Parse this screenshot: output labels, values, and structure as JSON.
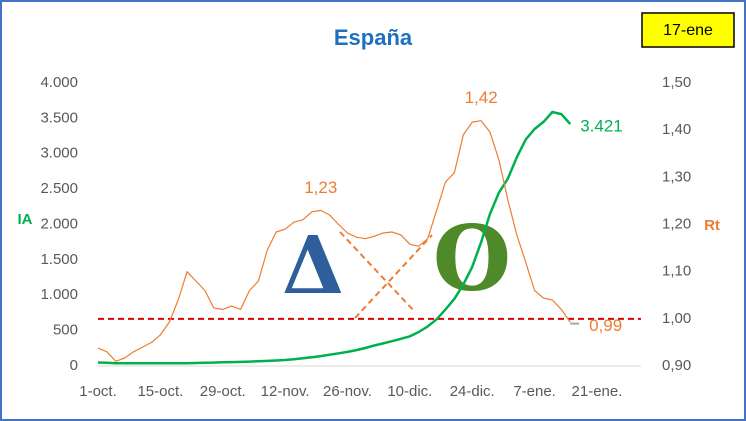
{
  "chart_data": {
    "type": "line",
    "title": "España",
    "badge": "17-ene",
    "y_label": "IA",
    "y2_label": "Rt",
    "categories": [
      "1-oct.",
      null,
      null,
      null,
      null,
      null,
      null,
      "15-oct.",
      null,
      null,
      null,
      null,
      null,
      null,
      "29-oct.",
      null,
      null,
      null,
      null,
      null,
      null,
      "12-nov.",
      null,
      null,
      null,
      null,
      null,
      null,
      "26-nov.",
      null,
      null,
      null,
      null,
      null,
      null,
      "10-dic.",
      null,
      null,
      null,
      null,
      null,
      null,
      "24-dic.",
      null,
      null,
      null,
      null,
      null,
      null,
      "7-ene.",
      null,
      null,
      null,
      null,
      null,
      null,
      "21-ene."
    ],
    "ylim": [
      0,
      4000
    ],
    "yticks": [
      {
        "value": 0,
        "label": "0"
      },
      {
        "value": 500,
        "label": "500"
      },
      {
        "value": 1000,
        "label": "1.000"
      },
      {
        "value": 1500,
        "label": "1.500"
      },
      {
        "value": 2000,
        "label": "2.000"
      },
      {
        "value": 2500,
        "label": "2.500"
      },
      {
        "value": 3000,
        "label": "3.000"
      },
      {
        "value": 3500,
        "label": "3.500"
      },
      {
        "value": 4000,
        "label": "4.000"
      }
    ],
    "y2lim": [
      0.9,
      1.5
    ],
    "y2ticks": [
      {
        "value": 0.9,
        "label": "0,90"
      },
      {
        "value": 1.0,
        "label": "1,00"
      },
      {
        "value": 1.1,
        "label": "1,10"
      },
      {
        "value": 1.2,
        "label": "1,20"
      },
      {
        "value": 1.3,
        "label": "1,30"
      },
      {
        "value": 1.4,
        "label": "1,40"
      },
      {
        "value": 1.5,
        "label": "1,50"
      }
    ],
    "series": [
      {
        "color": "#00b050",
        "axis": "y",
        "values": [
          50,
          45,
          40,
          38,
          38,
          38,
          38,
          38,
          38,
          40,
          40,
          42,
          45,
          48,
          52,
          55,
          58,
          62,
          68,
          72,
          78,
          85,
          95,
          110,
          125,
          140,
          160,
          180,
          200,
          225,
          255,
          290,
          320,
          350,
          385,
          420,
          480,
          560,
          660,
          800,
          950,
          1150,
          1400,
          1750,
          2150,
          2450,
          2650,
          2950,
          3200,
          3350,
          3450,
          3590,
          3560,
          3421,
          null,
          null,
          null
        ],
        "value_labels": [
          null,
          null,
          null,
          null,
          null,
          null,
          null,
          null,
          null,
          null,
          null,
          null,
          null,
          null,
          null,
          null,
          null,
          null,
          null,
          null,
          null,
          null,
          null,
          null,
          null,
          null,
          null,
          null,
          null,
          null,
          null,
          null,
          null,
          null,
          null,
          null,
          null,
          null,
          null,
          null,
          null,
          null,
          null,
          null,
          null,
          null,
          null,
          null,
          null,
          null,
          null,
          null,
          null,
          "3.421",
          null,
          null,
          null
        ]
      },
      {
        "color": "#ed7d31",
        "axis": "y2",
        "values": [
          0.938,
          0.93,
          0.91,
          0.917,
          0.93,
          0.94,
          0.95,
          0.966,
          0.993,
          1.04,
          1.1,
          1.08,
          1.06,
          1.023,
          1.02,
          1.027,
          1.02,
          1.06,
          1.08,
          1.146,
          1.184,
          1.19,
          1.205,
          1.21,
          1.227,
          1.23,
          1.22,
          1.2,
          1.182,
          1.173,
          1.17,
          1.175,
          1.182,
          1.184,
          1.178,
          1.158,
          1.154,
          1.17,
          1.23,
          1.29,
          1.31,
          1.39,
          1.417,
          1.42,
          1.396,
          1.337,
          1.252,
          1.178,
          1.12,
          1.06,
          1.044,
          1.04,
          1.02,
          0.993,
          null,
          null,
          null
        ],
        "value_labels": [
          null,
          null,
          null,
          null,
          null,
          null,
          null,
          null,
          null,
          null,
          null,
          null,
          null,
          null,
          null,
          null,
          null,
          null,
          null,
          null,
          null,
          null,
          null,
          null,
          null,
          "1,23",
          null,
          null,
          null,
          null,
          null,
          null,
          null,
          null,
          null,
          null,
          null,
          null,
          null,
          null,
          null,
          null,
          null,
          "1,42",
          null,
          null,
          null,
          null,
          null,
          null,
          null,
          null,
          null,
          null,
          null,
          null,
          null
        ]
      },
      {
        "color": "#a6a6a6",
        "axis": "y2",
        "label_color": "#ed7d31",
        "values": [
          null,
          null,
          null,
          null,
          null,
          null,
          null,
          null,
          null,
          null,
          null,
          null,
          null,
          null,
          null,
          null,
          null,
          null,
          null,
          null,
          null,
          null,
          null,
          null,
          null,
          null,
          null,
          null,
          null,
          null,
          null,
          null,
          null,
          null,
          null,
          null,
          null,
          null,
          null,
          null,
          null,
          null,
          null,
          null,
          null,
          null,
          null,
          null,
          null,
          null,
          null,
          null,
          null,
          0.99,
          0.99,
          null,
          null
        ],
        "value_labels": [
          null,
          null,
          null,
          null,
          null,
          null,
          null,
          null,
          null,
          null,
          null,
          null,
          null,
          null,
          null,
          null,
          null,
          null,
          null,
          null,
          null,
          null,
          null,
          null,
          null,
          null,
          null,
          null,
          null,
          null,
          null,
          null,
          null,
          null,
          null,
          null,
          null,
          null,
          null,
          null,
          null,
          null,
          null,
          null,
          null,
          null,
          null,
          null,
          null,
          null,
          null,
          null,
          null,
          null,
          "0,99",
          null,
          null
        ]
      }
    ],
    "reference_line": {
      "value": 1.0,
      "axis": "y2",
      "color": "#e00000"
    },
    "annotations": [
      {
        "text": "Δ",
        "color": "#2e5e9c"
      },
      {
        "text": "O",
        "color": "#4e8a2a"
      }
    ]
  }
}
